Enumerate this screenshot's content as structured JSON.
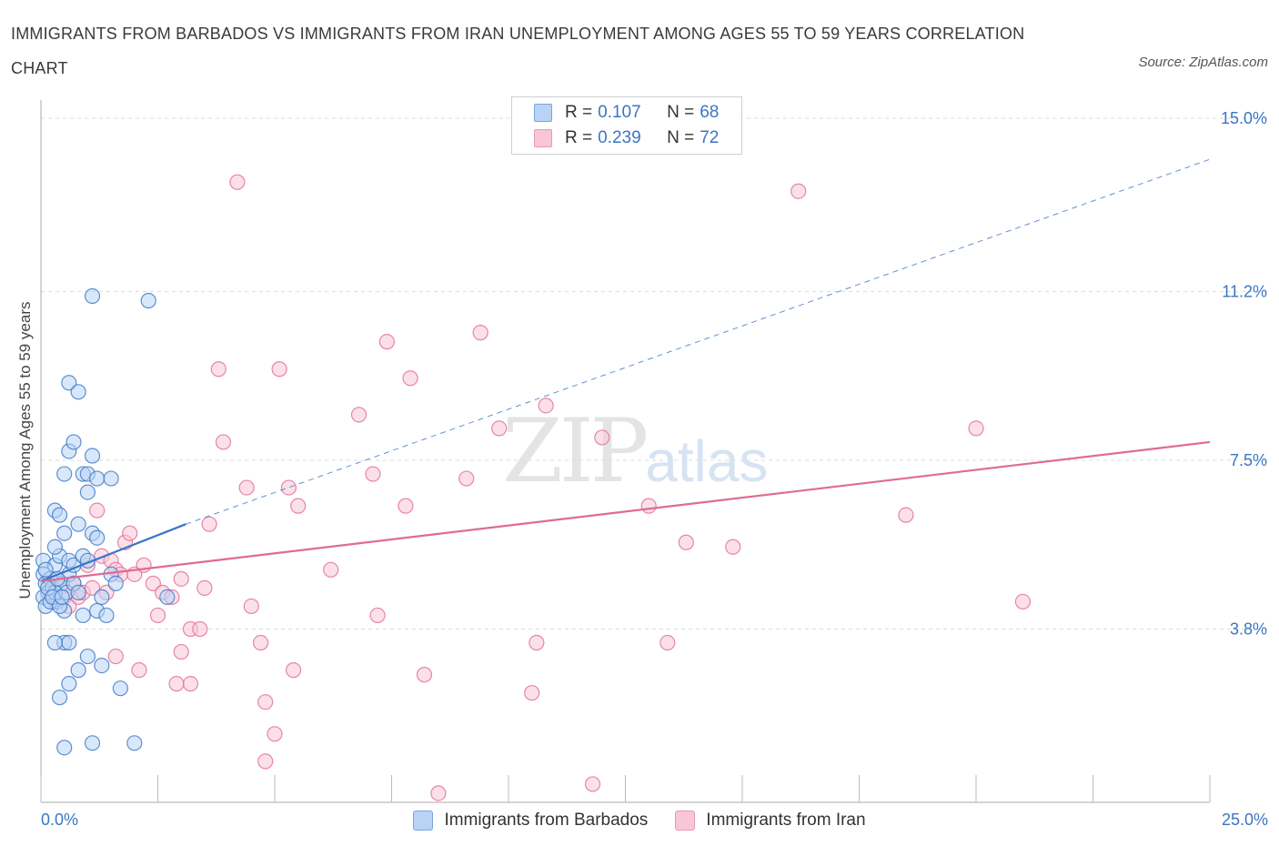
{
  "title": "IMMIGRANTS FROM BARBADOS VS IMMIGRANTS FROM IRAN UNEMPLOYMENT AMONG AGES 55 TO 59 YEARS CORRELATION CHART",
  "source": "Source: ZipAtlas.com",
  "watermark": {
    "zip": "ZIP",
    "atlas": "atlas"
  },
  "legend": {
    "rows": [
      {
        "r_label": "R = ",
        "r_value": "0.107",
        "n_label": "N = ",
        "n_value": "68"
      },
      {
        "r_label": "R = ",
        "r_value": "0.239",
        "n_label": "N = ",
        "n_value": "72"
      }
    ]
  },
  "bottom_legend": [
    "Immigrants from Barbados",
    "Immigrants from Iran"
  ],
  "chart_data": {
    "type": "scatter",
    "ylabel": "Unemployment Among Ages 55 to 59 years",
    "xlim": [
      0,
      25
    ],
    "ylim": [
      0,
      15
    ],
    "x_tick_labels": [
      "0.0%",
      "25.0%"
    ],
    "y_ticks": [
      3.8,
      7.5,
      11.2,
      15.0
    ],
    "y_tick_labels": [
      "3.8%",
      "7.5%",
      "11.2%",
      "15.0%"
    ],
    "grid": "horizontal dashed",
    "colors": {
      "barbados": "#3a76c4",
      "barbados_fill": "#b8d3f5",
      "iran": "#e06a93",
      "iran_fill": "#f9c6d6"
    },
    "series": [
      {
        "name": "Immigrants from Barbados",
        "trend": {
          "x0": 0,
          "y0": 4.85,
          "x1": 3.1,
          "y1": 6.1,
          "dashed_to_x": 25,
          "dashed_to_y": 14.1
        },
        "points": [
          [
            0.05,
            5.3
          ],
          [
            0.05,
            5.0
          ],
          [
            0.1,
            4.8
          ],
          [
            0.15,
            4.6
          ],
          [
            0.2,
            4.9
          ],
          [
            0.05,
            4.5
          ],
          [
            0.1,
            4.3
          ],
          [
            0.25,
            4.7
          ],
          [
            0.3,
            5.2
          ],
          [
            0.35,
            4.4
          ],
          [
            0.4,
            5.4
          ],
          [
            0.45,
            4.8
          ],
          [
            0.5,
            4.2
          ],
          [
            0.55,
            4.6
          ],
          [
            0.6,
            5.0
          ],
          [
            0.2,
            4.4
          ],
          [
            0.3,
            4.6
          ],
          [
            0.15,
            4.7
          ],
          [
            0.25,
            4.5
          ],
          [
            0.35,
            4.9
          ],
          [
            0.1,
            5.1
          ],
          [
            0.4,
            4.3
          ],
          [
            0.3,
            5.6
          ],
          [
            0.45,
            4.5
          ],
          [
            0.5,
            5.9
          ],
          [
            0.6,
            5.3
          ],
          [
            0.7,
            5.2
          ],
          [
            0.8,
            6.1
          ],
          [
            0.9,
            5.4
          ],
          [
            1.0,
            5.3
          ],
          [
            1.1,
            5.9
          ],
          [
            1.2,
            5.8
          ],
          [
            0.3,
            6.4
          ],
          [
            0.4,
            6.3
          ],
          [
            0.5,
            7.2
          ],
          [
            0.6,
            7.7
          ],
          [
            0.7,
            7.9
          ],
          [
            0.6,
            9.2
          ],
          [
            0.8,
            9.0
          ],
          [
            0.9,
            7.2
          ],
          [
            1.0,
            7.2
          ],
          [
            1.1,
            7.6
          ],
          [
            1.2,
            7.1
          ],
          [
            1.5,
            7.1
          ],
          [
            1.1,
            11.1
          ],
          [
            2.3,
            11.0
          ],
          [
            0.7,
            4.8
          ],
          [
            0.8,
            4.6
          ],
          [
            0.9,
            4.1
          ],
          [
            1.0,
            3.2
          ],
          [
            0.8,
            2.9
          ],
          [
            0.6,
            2.6
          ],
          [
            0.4,
            2.3
          ],
          [
            0.5,
            3.5
          ],
          [
            0.6,
            3.5
          ],
          [
            0.3,
            3.5
          ],
          [
            1.2,
            4.2
          ],
          [
            1.3,
            4.5
          ],
          [
            1.5,
            5.0
          ],
          [
            1.6,
            4.8
          ],
          [
            1.4,
            4.1
          ],
          [
            1.3,
            3.0
          ],
          [
            1.7,
            2.5
          ],
          [
            1.1,
            1.3
          ],
          [
            0.5,
            1.2
          ],
          [
            2.0,
            1.3
          ],
          [
            2.7,
            4.5
          ],
          [
            1.0,
            6.8
          ]
        ]
      },
      {
        "name": "Immigrants from Iran",
        "trend": {
          "x0": 0,
          "y0": 4.85,
          "x1": 25,
          "y1": 7.9
        },
        "points": [
          [
            0.2,
            4.6
          ],
          [
            0.3,
            4.4
          ],
          [
            0.4,
            4.7
          ],
          [
            0.5,
            4.5
          ],
          [
            0.6,
            4.3
          ],
          [
            0.7,
            4.8
          ],
          [
            0.8,
            4.5
          ],
          [
            0.9,
            4.6
          ],
          [
            1.0,
            5.2
          ],
          [
            1.1,
            4.7
          ],
          [
            1.3,
            5.4
          ],
          [
            1.4,
            4.6
          ],
          [
            1.5,
            5.3
          ],
          [
            1.6,
            5.1
          ],
          [
            1.7,
            5.0
          ],
          [
            1.8,
            5.7
          ],
          [
            1.9,
            5.9
          ],
          [
            2.0,
            5.0
          ],
          [
            2.2,
            5.2
          ],
          [
            2.4,
            4.8
          ],
          [
            2.5,
            4.1
          ],
          [
            2.6,
            4.6
          ],
          [
            2.8,
            4.5
          ],
          [
            3.0,
            3.3
          ],
          [
            3.2,
            3.8
          ],
          [
            3.4,
            3.8
          ],
          [
            3.5,
            4.7
          ],
          [
            3.6,
            6.1
          ],
          [
            3.8,
            9.5
          ],
          [
            3.9,
            7.9
          ],
          [
            4.2,
            13.6
          ],
          [
            4.4,
            6.9
          ],
          [
            4.5,
            4.3
          ],
          [
            4.7,
            3.5
          ],
          [
            4.8,
            2.2
          ],
          [
            4.8,
            0.9
          ],
          [
            5.0,
            1.5
          ],
          [
            5.1,
            9.5
          ],
          [
            5.3,
            6.9
          ],
          [
            5.5,
            6.5
          ],
          [
            5.4,
            2.9
          ],
          [
            6.2,
            5.1
          ],
          [
            6.8,
            8.5
          ],
          [
            7.1,
            7.2
          ],
          [
            7.2,
            4.1
          ],
          [
            7.4,
            10.1
          ],
          [
            7.8,
            6.5
          ],
          [
            7.9,
            9.3
          ],
          [
            8.2,
            2.8
          ],
          [
            8.5,
            0.2
          ],
          [
            9.1,
            7.1
          ],
          [
            9.4,
            10.3
          ],
          [
            9.8,
            8.2
          ],
          [
            10.5,
            2.4
          ],
          [
            10.8,
            8.7
          ],
          [
            11.8,
            0.4
          ],
          [
            12.0,
            8.0
          ],
          [
            13.0,
            6.5
          ],
          [
            13.4,
            3.5
          ],
          [
            13.8,
            5.7
          ],
          [
            14.8,
            5.6
          ],
          [
            16.2,
            13.4
          ],
          [
            18.5,
            6.3
          ],
          [
            20.0,
            8.2
          ],
          [
            21.0,
            4.4
          ],
          [
            3.0,
            4.9
          ],
          [
            2.9,
            2.6
          ],
          [
            3.2,
            2.6
          ],
          [
            2.1,
            2.9
          ],
          [
            1.6,
            3.2
          ],
          [
            1.2,
            6.4
          ],
          [
            10.6,
            3.5
          ]
        ]
      }
    ]
  }
}
